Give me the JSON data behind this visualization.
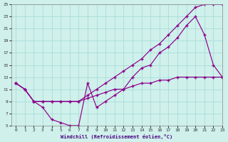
{
  "xlabel": "Windchill (Refroidissement éolien,°C)",
  "bg_color": "#cff0eb",
  "line_color": "#8b008b",
  "grid_color": "#a8ddd8",
  "line1_x": [
    0,
    1,
    2,
    3,
    4,
    5,
    6,
    7,
    8,
    9,
    10,
    11,
    12,
    13,
    14,
    15,
    16,
    17,
    18,
    19,
    20,
    21,
    22,
    23
  ],
  "line1_y": [
    12,
    11,
    9,
    9,
    9,
    9,
    9,
    9,
    9.5,
    10,
    10.5,
    11,
    11,
    11.5,
    12,
    12,
    12.5,
    12.5,
    13,
    13,
    13,
    13,
    13,
    13
  ],
  "line2_x": [
    0,
    1,
    2,
    3,
    4,
    5,
    6,
    7,
    8,
    9,
    10,
    11,
    12,
    13,
    14,
    15,
    16,
    17,
    18,
    19,
    20,
    21,
    22,
    23
  ],
  "line2_y": [
    12,
    11,
    9,
    8,
    6,
    5.5,
    5,
    5,
    12,
    8,
    9,
    10,
    11,
    13,
    14.5,
    15,
    17,
    18,
    19.5,
    21.5,
    23,
    20,
    15,
    13
  ],
  "line3_x": [
    0,
    1,
    2,
    3,
    4,
    5,
    6,
    7,
    8,
    9,
    10,
    11,
    12,
    13,
    14,
    15,
    16,
    17,
    18,
    19,
    20,
    21,
    22,
    23
  ],
  "line3_y": [
    12,
    11,
    9,
    9,
    9,
    9,
    9,
    9,
    10,
    11,
    12,
    13,
    14,
    15,
    16,
    17.5,
    18.5,
    20,
    21.5,
    23,
    24.5,
    25,
    25,
    25
  ],
  "xlim": [
    -0.5,
    23
  ],
  "ylim": [
    5,
    25
  ],
  "xticks": [
    0,
    1,
    2,
    3,
    4,
    5,
    6,
    7,
    8,
    9,
    10,
    11,
    12,
    13,
    14,
    15,
    16,
    17,
    18,
    19,
    20,
    21,
    22,
    23
  ],
  "yticks": [
    5,
    7,
    9,
    11,
    13,
    15,
    17,
    19,
    21,
    23,
    25
  ]
}
